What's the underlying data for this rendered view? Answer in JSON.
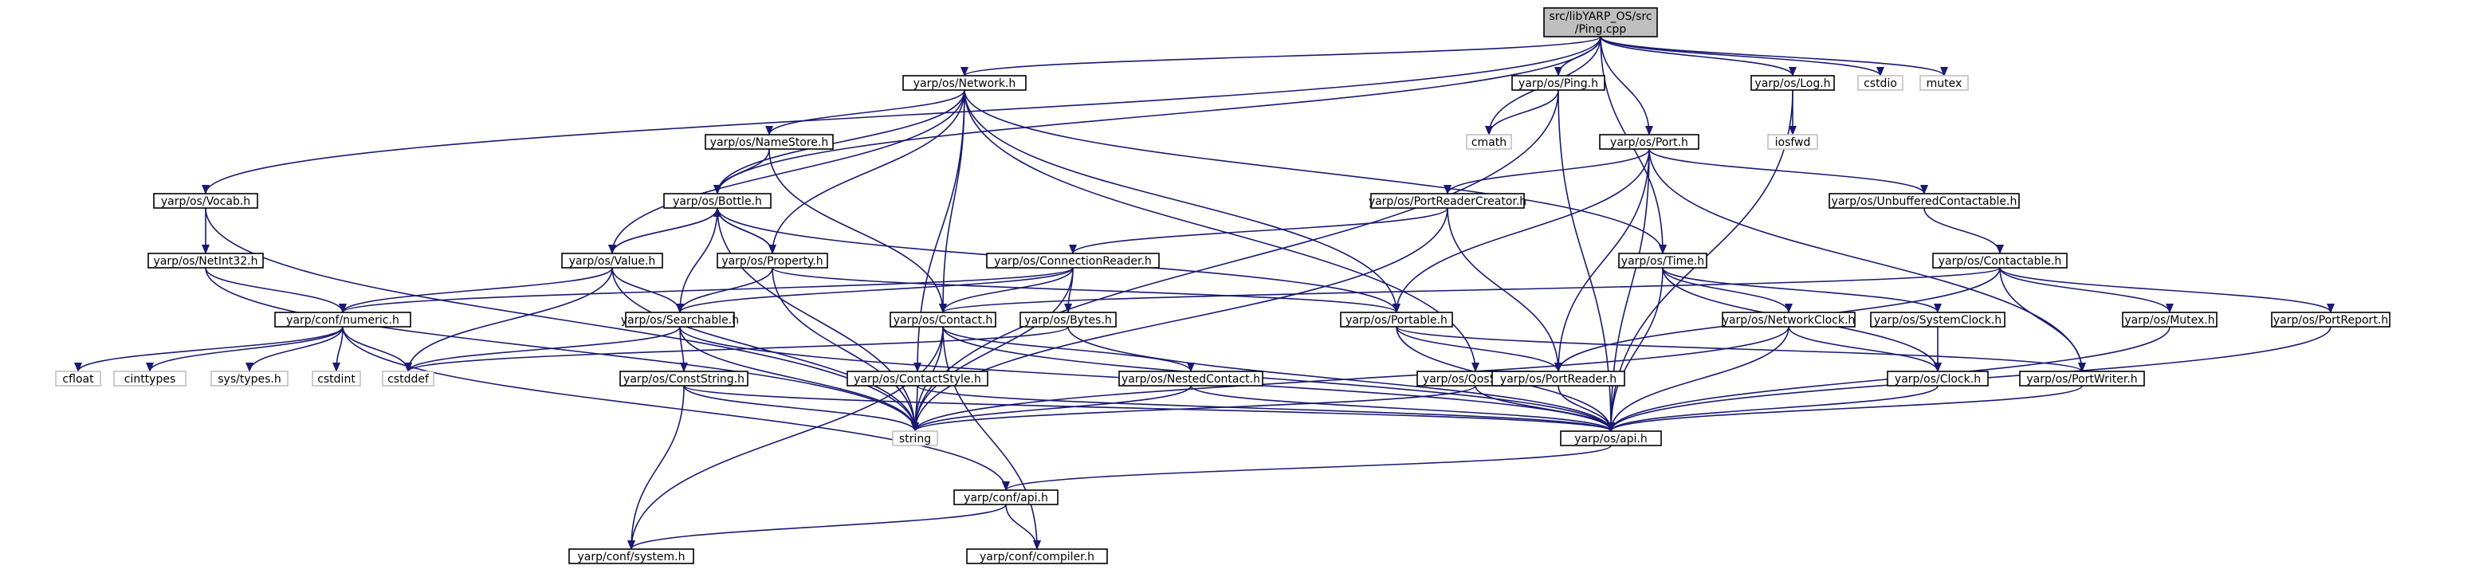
{
  "nodes": [
    {
      "id": "root",
      "lines": [
        "src/libYARP_OS/src",
        "/Ping.cpp"
      ],
      "kind": "root"
    },
    {
      "id": "network",
      "lines": [
        "yarp/os/Network.h"
      ],
      "kind": "internal"
    },
    {
      "id": "ping_h",
      "lines": [
        "yarp/os/Ping.h"
      ],
      "kind": "internal"
    },
    {
      "id": "log",
      "lines": [
        "yarp/os/Log.h"
      ],
      "kind": "internal"
    },
    {
      "id": "cstdio",
      "lines": [
        "cstdio"
      ],
      "kind": "external"
    },
    {
      "id": "mutex",
      "lines": [
        "mutex"
      ],
      "kind": "external"
    },
    {
      "id": "cmath",
      "lines": [
        "cmath"
      ],
      "kind": "external"
    },
    {
      "id": "iosfwd",
      "lines": [
        "iosfwd"
      ],
      "kind": "external"
    },
    {
      "id": "namestore",
      "lines": [
        "yarp/os/NameStore.h"
      ],
      "kind": "internal"
    },
    {
      "id": "port",
      "lines": [
        "yarp/os/Port.h"
      ],
      "kind": "internal"
    },
    {
      "id": "vocab",
      "lines": [
        "yarp/os/Vocab.h"
      ],
      "kind": "internal"
    },
    {
      "id": "bottle",
      "lines": [
        "yarp/os/Bottle.h"
      ],
      "kind": "internal"
    },
    {
      "id": "prc",
      "lines": [
        "yarp/os/PortReaderCreator.h"
      ],
      "kind": "internal"
    },
    {
      "id": "unbuf",
      "lines": [
        "yarp/os/UnbufferedContactable.h"
      ],
      "kind": "internal"
    },
    {
      "id": "netint",
      "lines": [
        "yarp/os/NetInt32.h"
      ],
      "kind": "internal"
    },
    {
      "id": "value",
      "lines": [
        "yarp/os/Value.h"
      ],
      "kind": "internal"
    },
    {
      "id": "property",
      "lines": [
        "yarp/os/Property.h"
      ],
      "kind": "internal"
    },
    {
      "id": "connreader",
      "lines": [
        "yarp/os/ConnectionReader.h"
      ],
      "kind": "internal"
    },
    {
      "id": "time",
      "lines": [
        "yarp/os/Time.h"
      ],
      "kind": "internal"
    },
    {
      "id": "contactable",
      "lines": [
        "yarp/os/Contactable.h"
      ],
      "kind": "internal"
    },
    {
      "id": "numeric",
      "lines": [
        "yarp/conf/numeric.h"
      ],
      "kind": "internal"
    },
    {
      "id": "searchable",
      "lines": [
        "yarp/os/Searchable.h"
      ],
      "kind": "internal"
    },
    {
      "id": "contact",
      "lines": [
        "yarp/os/Contact.h"
      ],
      "kind": "internal"
    },
    {
      "id": "bytes",
      "lines": [
        "yarp/os/Bytes.h"
      ],
      "kind": "internal"
    },
    {
      "id": "portable",
      "lines": [
        "yarp/os/Portable.h"
      ],
      "kind": "internal"
    },
    {
      "id": "netclock",
      "lines": [
        "yarp/os/NetworkClock.h"
      ],
      "kind": "internal"
    },
    {
      "id": "sysclock",
      "lines": [
        "yarp/os/SystemClock.h"
      ],
      "kind": "internal"
    },
    {
      "id": "mutex_h",
      "lines": [
        "yarp/os/Mutex.h"
      ],
      "kind": "internal"
    },
    {
      "id": "portreport",
      "lines": [
        "yarp/os/PortReport.h"
      ],
      "kind": "internal"
    },
    {
      "id": "cfloat",
      "lines": [
        "cfloat"
      ],
      "kind": "external"
    },
    {
      "id": "cinttypes",
      "lines": [
        "cinttypes"
      ],
      "kind": "external"
    },
    {
      "id": "systypes",
      "lines": [
        "sys/types.h"
      ],
      "kind": "external"
    },
    {
      "id": "cstdint",
      "lines": [
        "cstdint"
      ],
      "kind": "external"
    },
    {
      "id": "cstddef",
      "lines": [
        "cstddef"
      ],
      "kind": "external"
    },
    {
      "id": "conststring",
      "lines": [
        "yarp/os/ConstString.h"
      ],
      "kind": "internal"
    },
    {
      "id": "contactstyle",
      "lines": [
        "yarp/os/ContactStyle.h"
      ],
      "kind": "internal"
    },
    {
      "id": "nestedcontact",
      "lines": [
        "yarp/os/NestedContact.h"
      ],
      "kind": "internal"
    },
    {
      "id": "qosstyle",
      "lines": [
        "yarp/os/QosStyle.h"
      ],
      "kind": "internal"
    },
    {
      "id": "portreader",
      "lines": [
        "yarp/os/PortReader.h"
      ],
      "kind": "internal"
    },
    {
      "id": "clock",
      "lines": [
        "yarp/os/Clock.h"
      ],
      "kind": "internal"
    },
    {
      "id": "portwriter",
      "lines": [
        "yarp/os/PortWriter.h"
      ],
      "kind": "internal"
    },
    {
      "id": "string",
      "lines": [
        "string"
      ],
      "kind": "external"
    },
    {
      "id": "api_os",
      "lines": [
        "yarp/os/api.h"
      ],
      "kind": "internal"
    },
    {
      "id": "conf_api",
      "lines": [
        "yarp/conf/api.h"
      ],
      "kind": "internal"
    },
    {
      "id": "conf_system",
      "lines": [
        "yarp/conf/system.h"
      ],
      "kind": "internal"
    },
    {
      "id": "conf_compiler",
      "lines": [
        "yarp/conf/compiler.h"
      ],
      "kind": "internal"
    }
  ],
  "edges": [
    [
      "root",
      "network"
    ],
    [
      "root",
      "ping_h"
    ],
    [
      "root",
      "log"
    ],
    [
      "root",
      "cstdio"
    ],
    [
      "root",
      "mutex"
    ],
    [
      "root",
      "cmath"
    ],
    [
      "root",
      "port"
    ],
    [
      "root",
      "vocab"
    ],
    [
      "root",
      "bottle"
    ],
    [
      "root",
      "time"
    ],
    [
      "network",
      "namestore"
    ],
    [
      "network",
      "value"
    ],
    [
      "network",
      "bottle"
    ],
    [
      "network",
      "property"
    ],
    [
      "network",
      "contact"
    ],
    [
      "network",
      "contactstyle"
    ],
    [
      "network",
      "portable"
    ],
    [
      "network",
      "time"
    ],
    [
      "network",
      "qosstyle"
    ],
    [
      "ping_h",
      "cmath"
    ],
    [
      "ping_h",
      "string"
    ],
    [
      "ping_h",
      "api_os"
    ],
    [
      "log",
      "iosfwd"
    ],
    [
      "log",
      "api_os"
    ],
    [
      "namestore",
      "bottle"
    ],
    [
      "namestore",
      "contact"
    ],
    [
      "port",
      "prc"
    ],
    [
      "port",
      "unbuf"
    ],
    [
      "port",
      "portable"
    ],
    [
      "port",
      "portreader"
    ],
    [
      "port",
      "portwriter"
    ],
    [
      "port",
      "api_os"
    ],
    [
      "vocab",
      "netint"
    ],
    [
      "vocab",
      "string"
    ],
    [
      "bottle",
      "value"
    ],
    [
      "bottle",
      "property"
    ],
    [
      "bottle",
      "searchable"
    ],
    [
      "bottle",
      "portable"
    ],
    [
      "bottle",
      "string"
    ],
    [
      "prc",
      "connreader"
    ],
    [
      "prc",
      "portreader"
    ],
    [
      "prc",
      "string"
    ],
    [
      "unbuf",
      "contactable"
    ],
    [
      "netint",
      "numeric"
    ],
    [
      "netint",
      "string"
    ],
    [
      "value",
      "bottle"
    ],
    [
      "value",
      "numeric"
    ],
    [
      "value",
      "searchable"
    ],
    [
      "value",
      "cstddef"
    ],
    [
      "value",
      "string"
    ],
    [
      "property",
      "bottle"
    ],
    [
      "property",
      "searchable"
    ],
    [
      "property",
      "portable"
    ],
    [
      "property",
      "string"
    ],
    [
      "connreader",
      "numeric"
    ],
    [
      "connreader",
      "contact"
    ],
    [
      "connreader",
      "bytes"
    ],
    [
      "connreader",
      "searchable"
    ],
    [
      "connreader",
      "string"
    ],
    [
      "time",
      "netclock"
    ],
    [
      "time",
      "sysclock"
    ],
    [
      "time",
      "clock"
    ],
    [
      "time",
      "api_os"
    ],
    [
      "contactable",
      "contact"
    ],
    [
      "contactable",
      "portreader"
    ],
    [
      "contactable",
      "mutex_h"
    ],
    [
      "contactable",
      "portreport"
    ],
    [
      "contactable",
      "portwriter"
    ],
    [
      "numeric",
      "cfloat"
    ],
    [
      "numeric",
      "cinttypes"
    ],
    [
      "numeric",
      "systypes"
    ],
    [
      "numeric",
      "cstdint"
    ],
    [
      "numeric",
      "cstddef"
    ],
    [
      "numeric",
      "conf_api"
    ],
    [
      "searchable",
      "cstddef"
    ],
    [
      "searchable",
      "conststring"
    ],
    [
      "searchable",
      "string"
    ],
    [
      "searchable",
      "api_os"
    ],
    [
      "contact",
      "nestedcontact"
    ],
    [
      "contact",
      "string"
    ],
    [
      "contact",
      "conf_system"
    ],
    [
      "contact",
      "conf_compiler"
    ],
    [
      "contact",
      "api_os"
    ],
    [
      "bytes",
      "cstddef"
    ],
    [
      "bytes",
      "api_os"
    ],
    [
      "portable",
      "portreader"
    ],
    [
      "portable",
      "portwriter"
    ],
    [
      "portable",
      "api_os"
    ],
    [
      "netclock",
      "clock"
    ],
    [
      "netclock",
      "string"
    ],
    [
      "netclock",
      "api_os"
    ],
    [
      "sysclock",
      "clock"
    ],
    [
      "mutex_h",
      "api_os"
    ],
    [
      "portreport",
      "api_os"
    ],
    [
      "conststring",
      "conf_system"
    ],
    [
      "conststring",
      "string"
    ],
    [
      "conststring",
      "api_os"
    ],
    [
      "contactstyle",
      "string"
    ],
    [
      "contactstyle",
      "api_os"
    ],
    [
      "nestedcontact",
      "string"
    ],
    [
      "nestedcontact",
      "api_os"
    ],
    [
      "qosstyle",
      "string"
    ],
    [
      "qosstyle",
      "api_os"
    ],
    [
      "portreader",
      "api_os"
    ],
    [
      "clock",
      "api_os"
    ],
    [
      "portwriter",
      "api_os"
    ],
    [
      "api_os",
      "conf_api"
    ],
    [
      "conf_api",
      "conf_system"
    ],
    [
      "conf_api",
      "conf_compiler"
    ]
  ]
}
